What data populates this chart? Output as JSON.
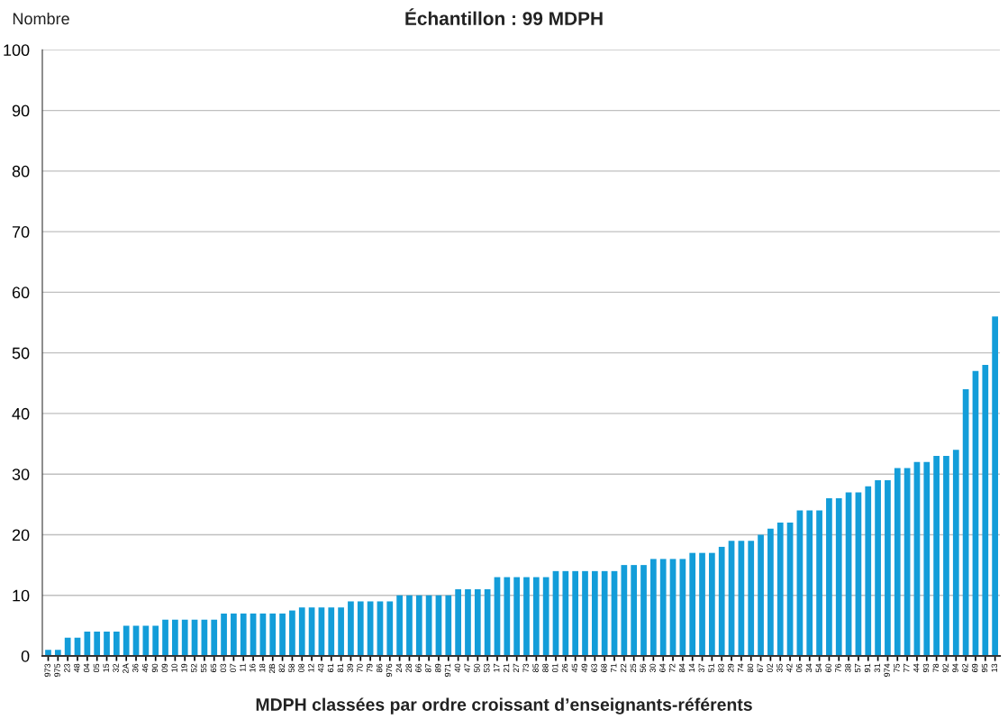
{
  "chart_data": {
    "type": "bar",
    "title": "Échantillon : 99 MDPH",
    "ylabel": "Nombre",
    "xlabel": "MDPH classées par ordre croissant d’enseignants-référents",
    "categories": [
      "973",
      "975",
      "23",
      "48",
      "04",
      "05",
      "15",
      "32",
      "2A",
      "36",
      "46",
      "90",
      "09",
      "10",
      "19",
      "52",
      "55",
      "65",
      "03",
      "07",
      "11",
      "16",
      "18",
      "2B",
      "82",
      "58",
      "08",
      "12",
      "43",
      "61",
      "81",
      "39",
      "70",
      "79",
      "86",
      "976",
      "24",
      "28",
      "66",
      "87",
      "89",
      "971",
      "40",
      "47",
      "50",
      "53",
      "17",
      "21",
      "27",
      "73",
      "85",
      "88",
      "01",
      "26",
      "45",
      "49",
      "63",
      "68",
      "71",
      "22",
      "25",
      "56",
      "30",
      "64",
      "72",
      "84",
      "14",
      "37",
      "51",
      "83",
      "29",
      "74",
      "80",
      "67",
      "02",
      "35",
      "42",
      "06",
      "34",
      "54",
      "60",
      "76",
      "38",
      "57",
      "91",
      "31",
      "974",
      "75",
      "77",
      "44",
      "93",
      "78",
      "92",
      "94",
      "62",
      "69",
      "95",
      "13"
    ],
    "values": [
      1,
      1,
      3,
      3,
      4,
      4,
      4,
      4,
      5,
      5,
      5,
      5,
      6,
      6,
      6,
      6,
      6,
      6,
      7,
      7,
      7,
      7,
      7,
      7,
      7,
      7.5,
      8,
      8,
      8,
      8,
      8,
      9,
      9,
      9,
      9,
      9,
      10,
      10,
      10,
      10,
      10,
      10,
      11,
      11,
      11,
      11,
      13,
      13,
      13,
      13,
      13,
      13,
      14,
      14,
      14,
      14,
      14,
      14,
      14,
      15,
      15,
      15,
      16,
      16,
      16,
      16,
      17,
      17,
      17,
      18,
      19,
      19,
      19,
      20,
      21,
      22,
      22,
      24,
      24,
      24,
      26,
      26,
      27,
      27,
      28,
      29,
      29,
      31,
      31,
      32,
      32,
      33,
      33,
      34,
      44,
      47,
      48,
      56
    ],
    "color": "#139dd9",
    "ylim": [
      0,
      100
    ],
    "yticks": [
      0,
      10,
      20,
      30,
      40,
      50,
      60,
      70,
      80,
      90,
      100
    ],
    "grid": "y"
  }
}
